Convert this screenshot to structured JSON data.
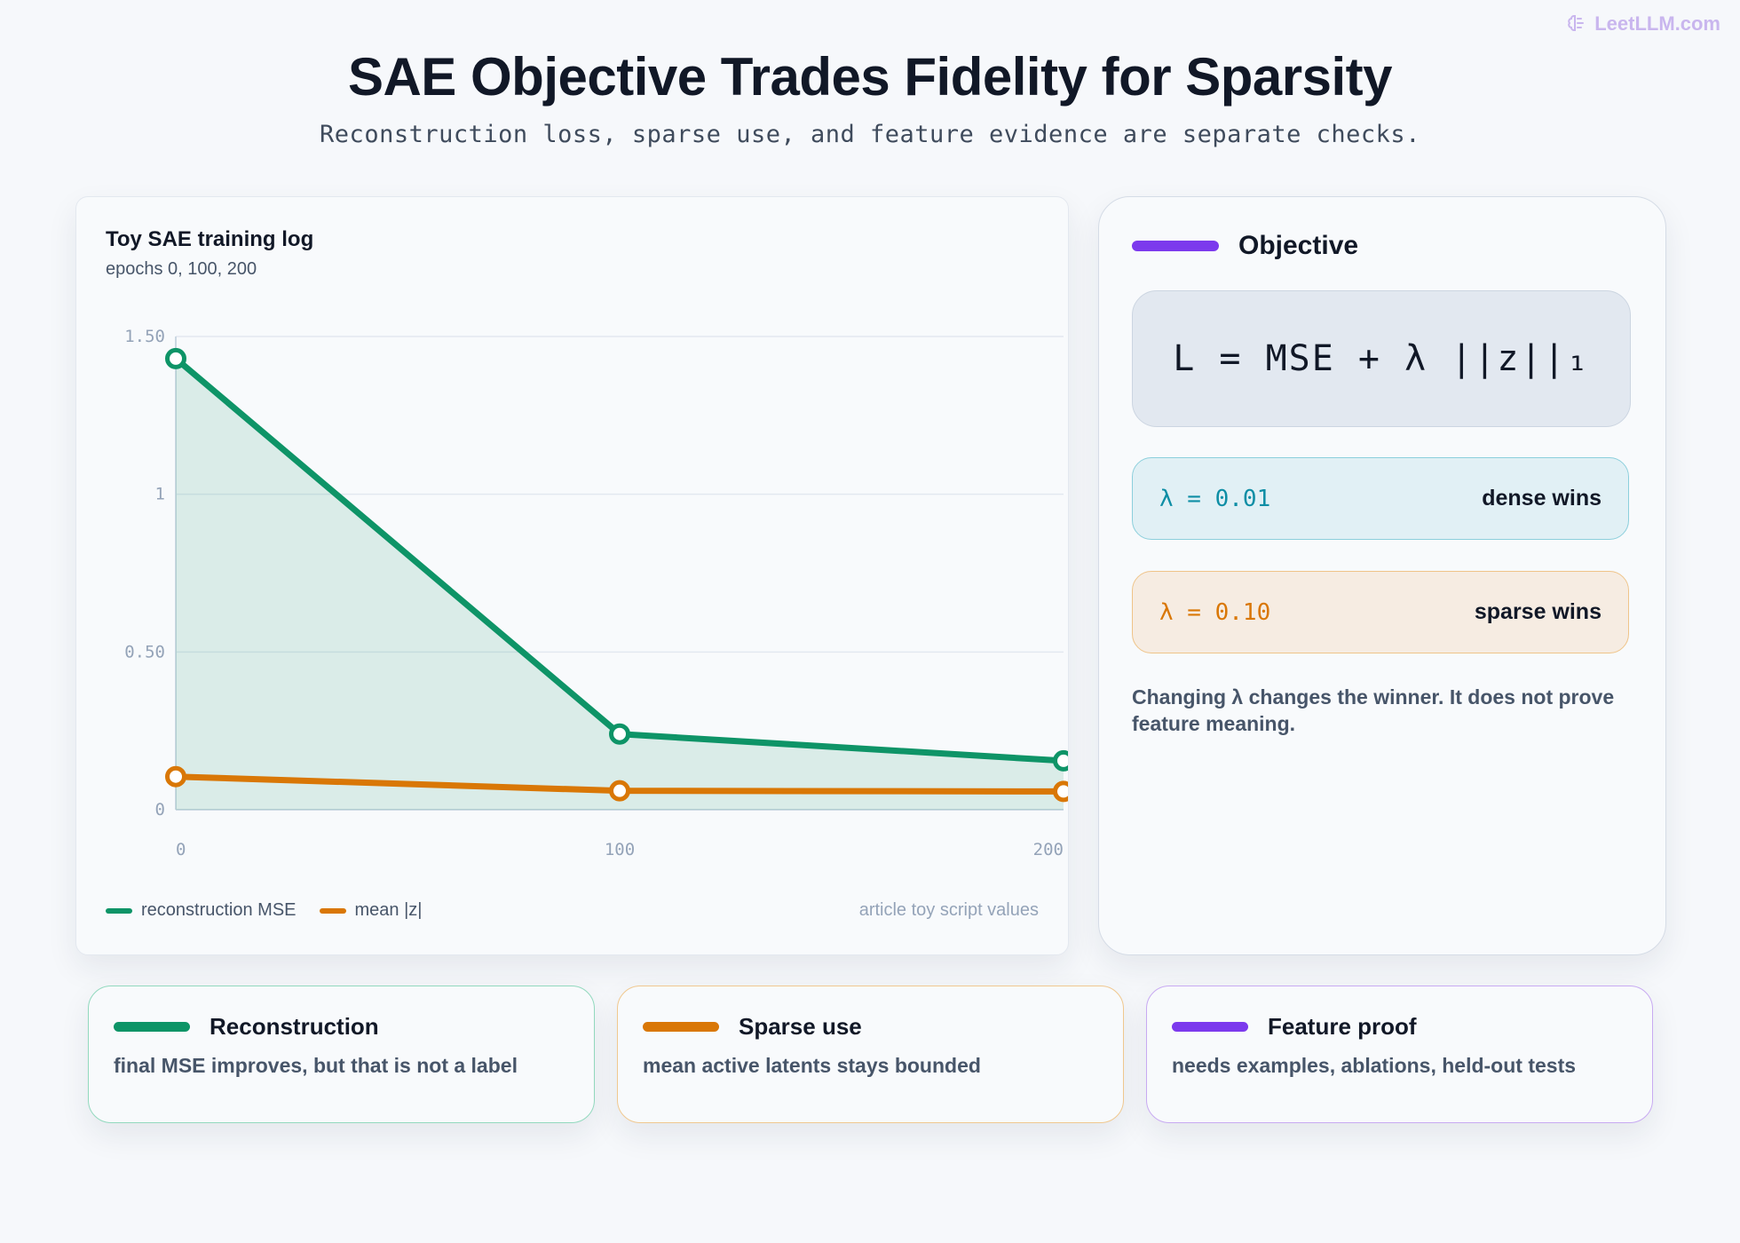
{
  "brand": {
    "name": "LeetLLM.com",
    "icon": "brain-icon"
  },
  "header": {
    "title": "SAE Objective Trades Fidelity for Sparsity",
    "subtitle": "Reconstruction loss, sparse use, and feature evidence are separate checks."
  },
  "chart_panel": {
    "title": "Toy SAE training log",
    "subtitle": "epochs 0, 100, 200",
    "note": "article toy script values"
  },
  "chart_data": {
    "type": "line",
    "x": [
      0,
      100,
      200
    ],
    "xticks": [
      "0",
      "100",
      "200"
    ],
    "yticks": [
      "0",
      "0.50",
      "1",
      "1.50"
    ],
    "ytick_values": [
      0,
      0.5,
      1,
      1.5
    ],
    "xlim": [
      0,
      200
    ],
    "ylim": [
      0,
      1.5
    ],
    "grid": true,
    "legend_position": "bottom-left",
    "series": [
      {
        "name": "reconstruction MSE",
        "values": [
          1.43,
          0.24,
          0.155
        ],
        "color": "#0e9467",
        "fill": true
      },
      {
        "name": "mean |z|",
        "values": [
          0.105,
          0.06,
          0.058
        ],
        "color": "#d97706",
        "fill": false
      }
    ]
  },
  "objective_panel": {
    "heading": "Objective",
    "formula": "L = MSE + λ ||z||₁",
    "rows": [
      {
        "lambda": "λ = 0.01",
        "winner": "dense wins"
      },
      {
        "lambda": "λ = 0.10",
        "winner": "sparse wins"
      }
    ],
    "note": "Changing λ changes the winner. It does not prove feature meaning."
  },
  "cards": [
    {
      "title": "Reconstruction",
      "text": "final MSE improves, but that is not a label",
      "color": "#0e9467"
    },
    {
      "title": "Sparse use",
      "text": "mean active latents stays bounded",
      "color": "#d97706"
    },
    {
      "title": "Feature proof",
      "text": "needs examples, ablations, held-out tests",
      "color": "#7c3aed"
    }
  ],
  "colors": {
    "accent_purple": "#7c3aed",
    "green": "#0e9467",
    "orange": "#d97706",
    "cyan": "#0e8ea5"
  }
}
